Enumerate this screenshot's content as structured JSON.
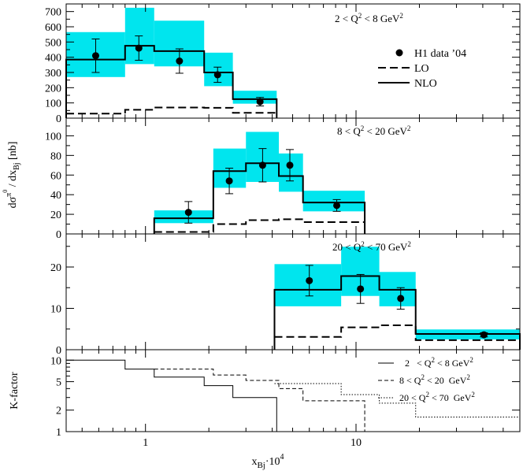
{
  "chart_data": {
    "type": "step",
    "xlabel_html": "x<tspan font-size='11' dy='4'>Bj</tspan><tspan dy='-4'>·10</tspan><tspan font-size='10' dy='-7'>4</tspan>",
    "ylabel": "dσπ0 / dxBj [nb]",
    "x_scale": "log",
    "xlim": [
      0.42,
      60
    ],
    "x_tick_labels": [
      "1",
      "10"
    ],
    "colors": {
      "band": "#00e5ee",
      "line": "#000000"
    },
    "legend": {
      "placement": "top-right of first panel",
      "entries": [
        "H1 data ’04",
        "LO",
        "NLO"
      ]
    },
    "panels": [
      {
        "label": "2 < Q² < 8 GeV²",
        "ylim": [
          0,
          750
        ],
        "y_ticks": [
          0,
          100,
          200,
          300,
          400,
          500,
          600,
          700
        ],
        "bins": [
          0.42,
          0.8,
          1.1,
          1.9,
          2.6,
          4.2
        ],
        "nlo": [
          385,
          475,
          440,
          300,
          125
        ],
        "nlo_band_low": [
          270,
          355,
          340,
          210,
          95
        ],
        "nlo_band_high": [
          565,
          725,
          640,
          430,
          180
        ],
        "lo": [
          30,
          55,
          70,
          68,
          35
        ],
        "data_x": [
          0.58,
          0.93,
          1.45,
          2.2,
          3.5
        ],
        "data_y": [
          410,
          460,
          375,
          285,
          108
        ],
        "data_err": [
          110,
          80,
          80,
          50,
          28
        ]
      },
      {
        "label": "8 < Q² < 20 GeV²",
        "ylim": [
          0,
          118
        ],
        "y_ticks": [
          0,
          20,
          40,
          60,
          80,
          100
        ],
        "bins": [
          1.1,
          2.1,
          3.0,
          4.3,
          5.6,
          11
        ],
        "nlo": [
          16,
          64,
          72,
          59,
          32
        ],
        "nlo_band_low": [
          11,
          47,
          53,
          43,
          23
        ],
        "nlo_band_high": [
          24,
          87,
          104,
          82,
          44
        ],
        "lo": [
          2,
          10,
          14,
          15,
          12
        ],
        "data_x": [
          1.6,
          2.5,
          3.6,
          4.85,
          8.1
        ],
        "data_y": [
          22,
          54,
          70,
          70,
          29
        ],
        "data_err": [
          11,
          13,
          17,
          16,
          6
        ]
      },
      {
        "label": "20 < Q² < 70 GeV²",
        "ylim": [
          0,
          28
        ],
        "y_ticks": [
          0,
          10,
          20
        ],
        "bins": [
          4.1,
          8.5,
          12.9,
          19.2,
          60
        ],
        "nlo": [
          14.5,
          17.8,
          14.5,
          3.8
        ],
        "nlo_band_low": [
          10.5,
          13.0,
          10.5,
          2.5
        ],
        "nlo_band_high": [
          20.7,
          24.9,
          18.8,
          4.9
        ],
        "lo": [
          3.1,
          5.4,
          5.9,
          2.3
        ],
        "data_x": [
          6.0,
          10.5,
          16.3,
          40.5
        ],
        "data_y": [
          16.7,
          14.7,
          12.4,
          3.6
        ],
        "data_err": [
          3.7,
          3.5,
          2.6,
          0.5
        ]
      },
      {
        "ylabel": "K-factor",
        "y_scale": "log",
        "ylim": [
          1,
          14
        ],
        "y_ticks": [
          1,
          2,
          5,
          10
        ],
        "lines": [
          {
            "label": "2 < Q² < 8 GeV²",
            "label_html": "2 &#160;&#160;&lt; Q<tspan font-size='9' dy='-5'>2</tspan><tspan dy='5'> &lt; 8 GeV</tspan><tspan font-size='9' dy='-5'>2</tspan>",
            "style": "solid",
            "bins": [
              0.42,
              0.8,
              1.1,
              1.9,
              2.6,
              4.2
            ],
            "values": [
              10.0,
              7.5,
              5.8,
              4.4,
              3.0
            ]
          },
          {
            "label": "8 < Q² < 20 GeV²",
            "label_html": "8 &lt; Q<tspan font-size='9' dy='-5'>2</tspan><tspan dy='5'> &lt; 20 &#160;GeV</tspan><tspan font-size='9' dy='-5'>2</tspan>",
            "style": "dashed",
            "bins": [
              1.1,
              2.1,
              3.0,
              4.3,
              5.6,
              11
            ],
            "values": [
              7.5,
              6.2,
              5.2,
              4.0,
              2.7
            ]
          },
          {
            "label": "20 < Q² < 70 GeV²",
            "label_html": "20 &lt; Q<tspan font-size='9' dy='-5'>2</tspan><tspan dy='5'> &lt; 70 &#160;GeV</tspan><tspan font-size='9' dy='-5'>2</tspan>",
            "style": "dotted",
            "bins": [
              4.1,
              8.5,
              12.9,
              19.2,
              60
            ],
            "values": [
              4.7,
              3.3,
              2.5,
              1.6
            ]
          }
        ]
      }
    ]
  }
}
